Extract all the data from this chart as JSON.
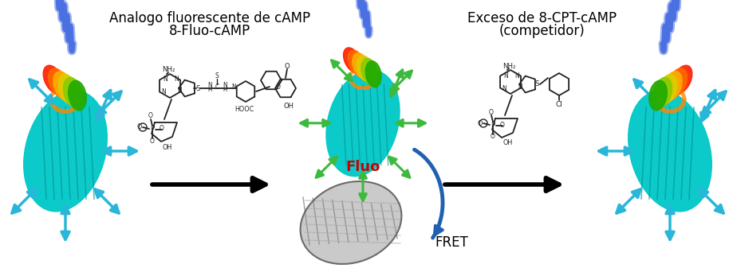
{
  "title_left_line1": "Analogo fluorescente de cAMP",
  "title_left_line2": "8-Fluo-cAMP",
  "title_right_line1": "Exceso de 8-CPT-cAMP",
  "title_right_line2": "(competidor)",
  "fret_label": "FRET",
  "fluo_label": "Fluo",
  "background_color": "#ffffff",
  "text_color": "#1a1a1a",
  "cyan_color": "#29b6d8",
  "green_color": "#3dba3d",
  "black_color": "#000000",
  "blue_color": "#2060b0",
  "red_color": "#cc0000",
  "figsize": [
    9.2,
    3.37
  ],
  "dpi": 100,
  "title_fontsize": 12,
  "label_fontsize": 11
}
